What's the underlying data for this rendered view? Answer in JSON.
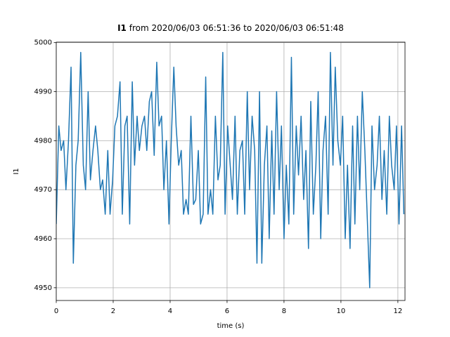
{
  "chart_data": {
    "type": "line",
    "title": [
      "I1",
      "from 2020/06/03 06:51:36 to 2020/06/03 06:51:48"
    ],
    "x_label": "time (s)",
    "y_label": "I1",
    "xlim": [
      0,
      12.25
    ],
    "ylim": [
      4947.4,
      5000.1
    ],
    "xticks": [
      0,
      2,
      4,
      6,
      8,
      10,
      12
    ],
    "yticks": [
      4950,
      4960,
      4970,
      4980,
      4990,
      5000
    ],
    "grid": true,
    "x": [
      0,
      0.09,
      0.17,
      0.26,
      0.34,
      0.43,
      0.52,
      0.6,
      0.69,
      0.77,
      0.86,
      0.95,
      1.03,
      1.12,
      1.2,
      1.29,
      1.38,
      1.46,
      1.55,
      1.63,
      1.72,
      1.81,
      1.89,
      1.98,
      2.06,
      2.15,
      2.24,
      2.32,
      2.41,
      2.49,
      2.58,
      2.67,
      2.75,
      2.84,
      2.92,
      3.01,
      3.1,
      3.18,
      3.27,
      3.35,
      3.44,
      3.53,
      3.61,
      3.7,
      3.78,
      3.87,
      3.96,
      4.04,
      4.13,
      4.21,
      4.3,
      4.39,
      4.47,
      4.56,
      4.64,
      4.73,
      4.82,
      4.9,
      4.99,
      5.07,
      5.16,
      5.25,
      5.33,
      5.42,
      5.5,
      5.59,
      5.68,
      5.76,
      5.85,
      5.93,
      6.02,
      6.11,
      6.19,
      6.28,
      6.36,
      6.45,
      6.54,
      6.62,
      6.71,
      6.79,
      6.88,
      6.97,
      7.05,
      7.14,
      7.22,
      7.31,
      7.4,
      7.48,
      7.57,
      7.65,
      7.74,
      7.83,
      7.91,
      8,
      8.08,
      8.17,
      8.26,
      8.34,
      8.43,
      8.51,
      8.6,
      8.69,
      8.77,
      8.86,
      8.94,
      9.03,
      9.12,
      9.2,
      9.29,
      9.37,
      9.46,
      9.55,
      9.63,
      9.72,
      9.8,
      9.89,
      9.98,
      10.06,
      10.15,
      10.23,
      10.32,
      10.41,
      10.49,
      10.58,
      10.66,
      10.75,
      10.84,
      10.92,
      11.01,
      11.09,
      11.18,
      11.27,
      11.35,
      11.44,
      11.52,
      11.61,
      11.7,
      11.78,
      11.87,
      11.95,
      12.04,
      12.13,
      12.21
    ],
    "series": [
      {
        "color": "#1f77b4",
        "values": [
          4963,
          4983,
          4978,
          4980,
          4970,
          4980,
          4995,
          4955,
          4975,
          4980,
          4998,
          4975,
          4970,
          4990,
          4972,
          4978,
          4983,
          4978,
          4970,
          4972,
          4965,
          4978,
          4965,
          4972,
          4983,
          4985,
          4992,
          4965,
          4983,
          4985,
          4963,
          4992,
          4975,
          4985,
          4978,
          4983,
          4985,
          4978,
          4988,
          4990,
          4977,
          4996,
          4983,
          4985,
          4970,
          4980,
          4963,
          4980,
          4995,
          4983,
          4975,
          4978,
          4965,
          4968,
          4965,
          4985,
          4967,
          4968,
          4978,
          4963,
          4965,
          4993,
          4965,
          4970,
          4965,
          4985,
          4972,
          4975,
          4998,
          4965,
          4983,
          4975,
          4968,
          4985,
          4965,
          4978,
          4980,
          4965,
          4990,
          4970,
          4985,
          4978,
          4955,
          4990,
          4955,
          4975,
          4983,
          4960,
          4982,
          4965,
          4990,
          4970,
          4983,
          4960,
          4975,
          4963,
          4997,
          4965,
          4983,
          4973,
          4985,
          4968,
          4978,
          4958,
          4988,
          4965,
          4975,
          4990,
          4960,
          4978,
          4985,
          4965,
          4998,
          4975,
          4995,
          4980,
          4975,
          4985,
          4960,
          4975,
          4958,
          4983,
          4963,
          4985,
          4970,
          4990,
          4978,
          4965,
          4950,
          4983,
          4970,
          4975,
          4985,
          4968,
          4978,
          4965,
          4985,
          4975,
          4970,
          4983,
          4963,
          4983,
          4965
        ]
      }
    ]
  }
}
